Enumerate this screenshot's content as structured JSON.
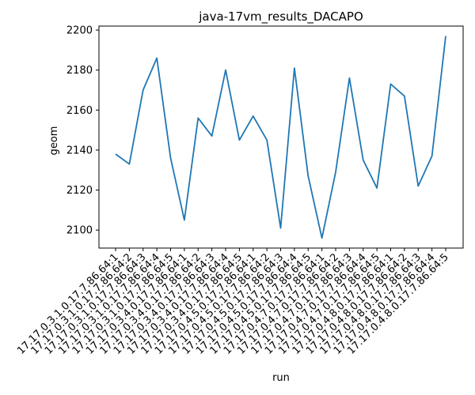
{
  "chart_data": {
    "type": "line",
    "title": "java-17vm_results_DACAPO",
    "xlabel": "run",
    "ylabel": "geom",
    "categories": [
      "17.17.0.3.1.0.17.7.86.64:1",
      "17.17.0.3.1.0.17.7.86.64:2",
      "17.17.0.3.1.0.17.7.86.64:3",
      "17.17.0.3.1.0.17.7.86.64:4",
      "17.17.0.3.1.0.17.7.86.64:5",
      "17.17.0.3.4.0.17.7.86.64:1",
      "17.17.0.3.4.0.17.7.86.64:2",
      "17.17.0.3.4.0.17.7.86.64:3",
      "17.17.0.3.4.0.17.7.86.64:4",
      "17.17.0.3.4.0.17.7.86.64:5",
      "17.17.0.4.5.0.17.7.86.64:1",
      "17.17.0.4.5.0.17.7.86.64:2",
      "17.17.0.4.5.0.17.7.86.64:3",
      "17.17.0.4.5.0.17.7.86.64:4",
      "17.17.0.4.5.0.17.7.86.64:5",
      "17.17.0.4.7.0.17.7.86.64:1",
      "17.17.0.4.7.0.17.7.86.64:2",
      "17.17.0.4.7.0.17.7.86.64:3",
      "17.17.0.4.7.0.17.7.86.64:4",
      "17.17.0.4.7.0.17.7.86.64:5",
      "17.17.0.4.8.0.17.7.86.64:1",
      "17.17.0.4.8.0.17.7.86.64:2",
      "17.17.0.4.8.0.17.7.86.64:3",
      "17.17.0.4.8.0.17.7.86.64:4",
      "17.17.0.4.8.0.17.7.86.64:5"
    ],
    "series": [
      {
        "values": [
          2138,
          2133,
          2170,
          2186,
          2136,
          2105,
          2156,
          2147,
          2180,
          2145,
          2157,
          2145,
          2101,
          2181,
          2127,
          2096,
          2129,
          2176,
          2135,
          2121,
          2173,
          2167,
          2122,
          2137,
          2197
        ],
        "color": "#1f77b4"
      }
    ],
    "ylim": [
      2091,
      2202
    ],
    "yticks": [
      2100,
      2120,
      2140,
      2160,
      2180,
      2200
    ],
    "grid": false,
    "legend": "none"
  }
}
